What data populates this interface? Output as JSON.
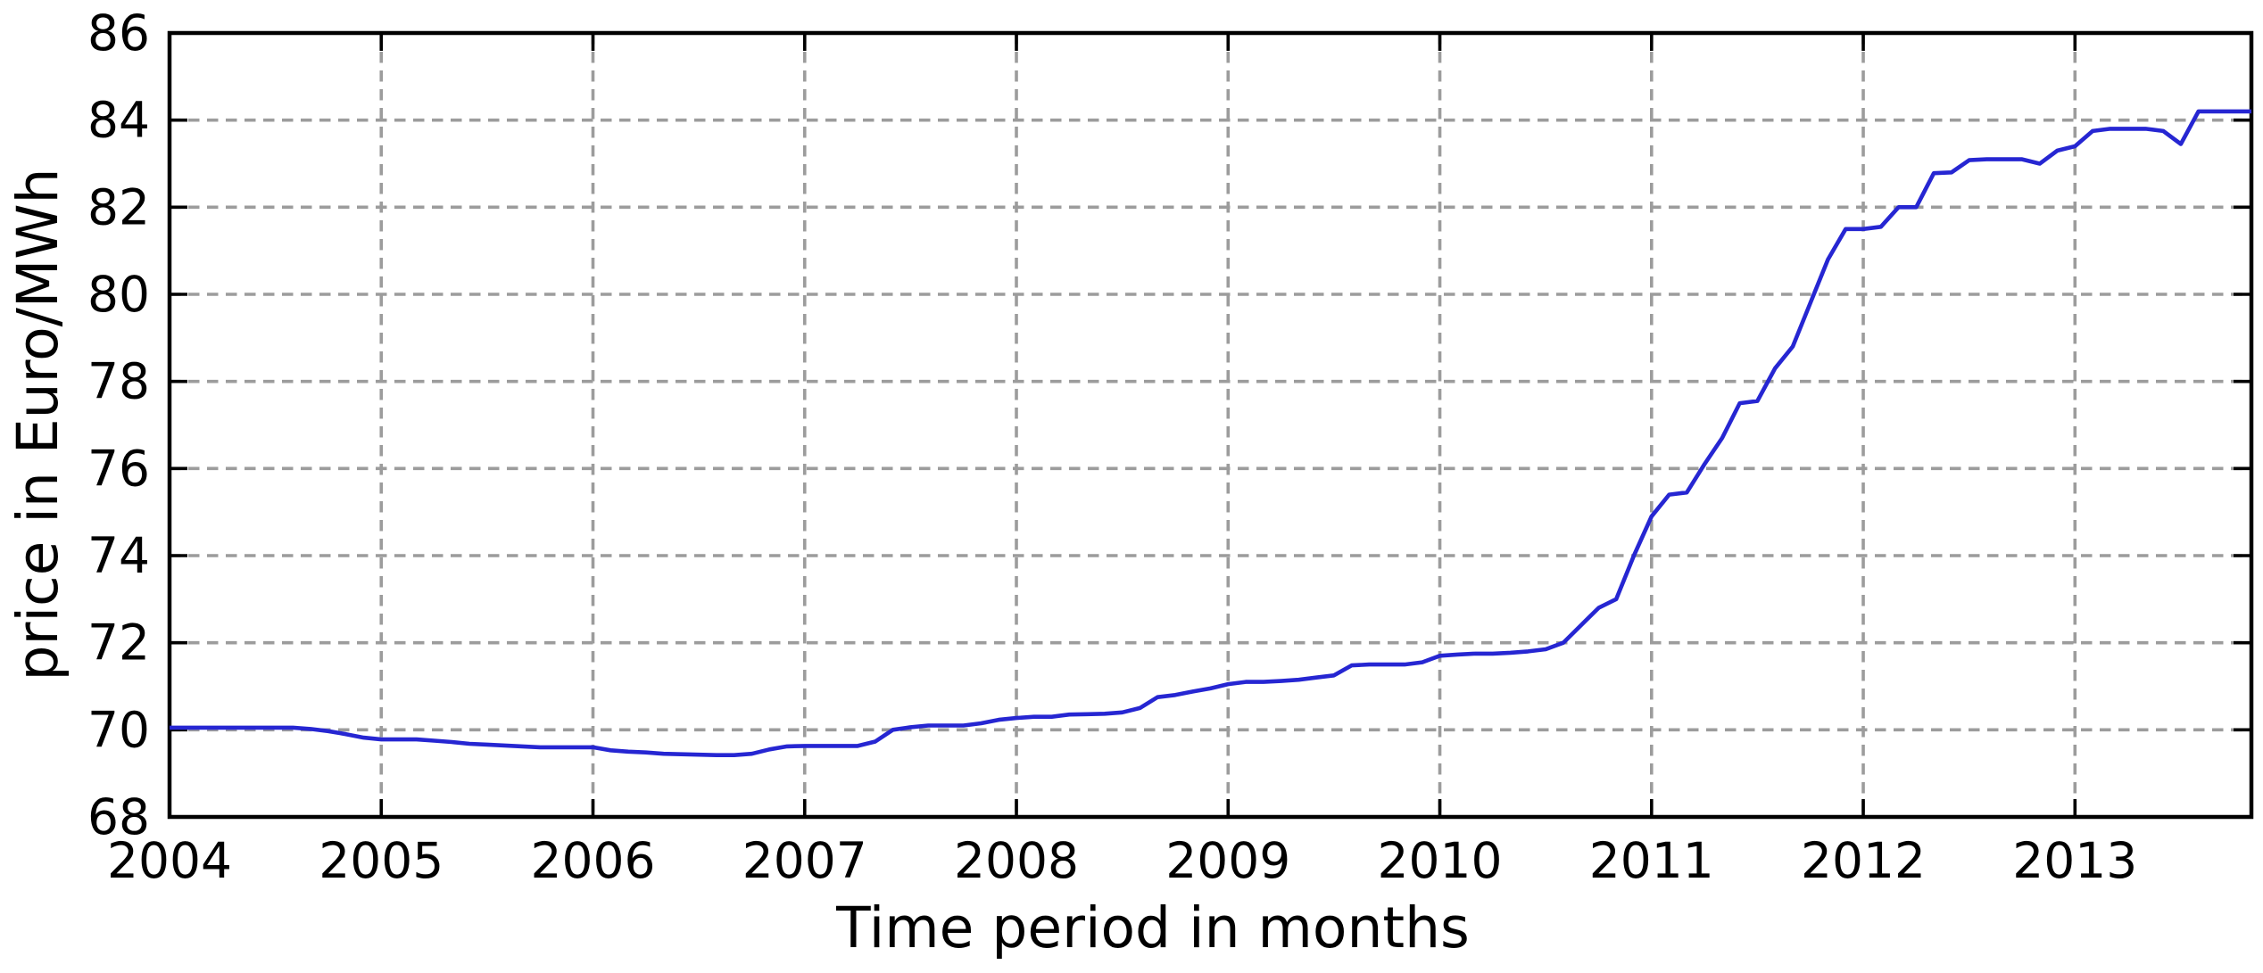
{
  "chart_data": {
    "type": "line",
    "title": "",
    "xlabel": "Time period in months",
    "ylabel": "price in Euro/MWh",
    "x_tick_labels": [
      "2004",
      "2005",
      "2006",
      "2007",
      "2008",
      "2009",
      "2010",
      "2011",
      "2012",
      "2013"
    ],
    "y_tick_labels": [
      "68",
      "70",
      "72",
      "74",
      "76",
      "78",
      "80",
      "82",
      "84",
      "86"
    ],
    "xlim": [
      2004.0,
      2013.8333
    ],
    "ylim": [
      68,
      86
    ],
    "grid": true,
    "grid_style": "dashed",
    "legend": null,
    "x_unit": "monthly, Jan 2004 to Nov 2013",
    "series": [
      {
        "name": "price in Euro/MWh",
        "color": "#2626d2",
        "x_start": 2004.0,
        "x_step": 0.0833333,
        "values": [
          70.05,
          70.05,
          70.05,
          70.05,
          70.05,
          70.05,
          70.05,
          70.05,
          70.02,
          69.97,
          69.9,
          69.82,
          69.78,
          69.78,
          69.78,
          69.75,
          69.72,
          69.68,
          69.66,
          69.64,
          69.62,
          69.6,
          69.6,
          69.6,
          69.6,
          69.53,
          69.5,
          69.48,
          69.45,
          69.44,
          69.43,
          69.42,
          69.42,
          69.45,
          69.55,
          69.62,
          69.63,
          69.63,
          69.63,
          69.63,
          69.73,
          70.0,
          70.06,
          70.1,
          70.1,
          70.1,
          70.15,
          70.23,
          70.27,
          70.3,
          70.3,
          70.35,
          70.36,
          70.37,
          70.4,
          70.5,
          70.75,
          70.8,
          70.88,
          70.95,
          71.05,
          71.1,
          71.1,
          71.12,
          71.15,
          71.2,
          71.25,
          71.48,
          71.5,
          71.5,
          71.5,
          71.55,
          71.7,
          71.73,
          71.75,
          71.75,
          71.77,
          71.8,
          71.85,
          72.0,
          72.4,
          72.8,
          73.0,
          74.0,
          74.9,
          75.4,
          75.45,
          76.1,
          76.7,
          77.5,
          77.55,
          78.3,
          78.8,
          79.8,
          80.8,
          81.5,
          81.5,
          81.55,
          82.0,
          82.0,
          82.78,
          82.8,
          83.08,
          83.1,
          83.1,
          83.1,
          83.0,
          83.3,
          83.4,
          83.75,
          83.8,
          83.8,
          83.8,
          83.75,
          83.45,
          84.2,
          84.2,
          84.2,
          84.2
        ]
      }
    ]
  },
  "style": {
    "background": "#ffffff",
    "line_color": "#2626d2",
    "grid_color": "#9c9c9c",
    "axis_color": "#000000",
    "text_color": "#000000"
  }
}
